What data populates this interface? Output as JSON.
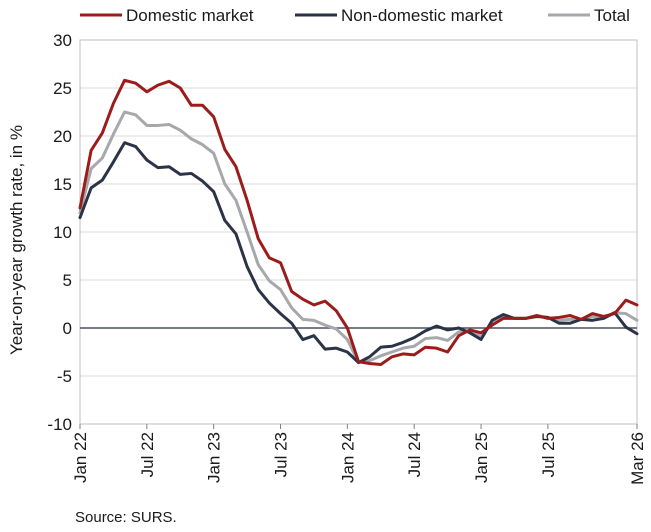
{
  "chart_data": {
    "type": "line",
    "title": "",
    "ylabel": "Year-on-year growth rate, in %",
    "xlabel": "",
    "ylim": [
      -10,
      30
    ],
    "yticks": [
      -10,
      -5,
      0,
      5,
      10,
      15,
      20,
      25,
      30
    ],
    "grid": true,
    "legend_position": "top",
    "x": [
      "Jan 22",
      "Feb 22",
      "Mar 22",
      "Apr 22",
      "May 22",
      "Jun 22",
      "Jul 22",
      "Aug 22",
      "Sep 22",
      "Oct 22",
      "Nov 22",
      "Dec 22",
      "Jan 23",
      "Feb 23",
      "Mar 23",
      "Apr 23",
      "May 23",
      "Jun 23",
      "Jul 23",
      "Aug 23",
      "Sep 23",
      "Oct 23",
      "Nov 23",
      "Dec 23",
      "Jan 24",
      "Feb 24",
      "Mar 24",
      "Apr 24",
      "May 24",
      "Jun 24",
      "Jul 24",
      "Aug 24",
      "Sep 24",
      "Oct 24",
      "Nov 24",
      "Dec 24",
      "Jan 25",
      "Feb 25",
      "Mar 25",
      "Apr 25",
      "May 25",
      "Jun 25",
      "Jul 25",
      "Aug 25",
      "Sep 25",
      "Oct 25",
      "Nov 25",
      "Dec 25",
      "Jan 26",
      "Feb 26",
      "Mar 26"
    ],
    "x_tick_labels": [
      {
        "index": 0,
        "label": "Jan 22"
      },
      {
        "index": 6,
        "label": "Jul 22"
      },
      {
        "index": 12,
        "label": "Jan 23"
      },
      {
        "index": 18,
        "label": "Jul 23"
      },
      {
        "index": 24,
        "label": "Jan 24"
      },
      {
        "index": 30,
        "label": "Jul 24"
      },
      {
        "index": 36,
        "label": "Jan 25"
      },
      {
        "index": 42,
        "label": "Jul 25"
      },
      {
        "index": 50,
        "label": "Mar 26"
      }
    ],
    "series": [
      {
        "name": "Domestic market",
        "color": "#9c1c1c",
        "values": [
          12.5,
          18.5,
          20.3,
          23.4,
          25.8,
          25.5,
          24.6,
          25.3,
          25.7,
          25.0,
          23.2,
          23.2,
          22.0,
          18.6,
          16.8,
          13.3,
          9.3,
          7.3,
          6.8,
          3.8,
          3.0,
          2.4,
          2.8,
          1.8,
          0.0,
          -3.5,
          -3.7,
          -3.8,
          -3.0,
          -2.7,
          -2.8,
          -2.0,
          -2.1,
          -2.5,
          -0.8,
          -0.2,
          -0.5,
          0.3,
          1.0,
          1.0,
          1.0,
          1.3,
          1.0,
          1.1,
          1.3,
          0.9,
          1.5,
          1.2,
          1.5,
          2.9,
          2.4
        ]
      },
      {
        "name": "Non-domestic market",
        "color": "#2b3347",
        "values": [
          11.5,
          14.6,
          15.4,
          17.3,
          19.3,
          18.9,
          17.5,
          16.7,
          16.8,
          16.0,
          16.1,
          15.3,
          14.2,
          11.2,
          9.8,
          6.4,
          4.0,
          2.6,
          1.5,
          0.5,
          -1.2,
          -0.8,
          -2.2,
          -2.1,
          -2.5,
          -3.6,
          -3.0,
          -2.0,
          -1.9,
          -1.5,
          -1.0,
          -0.3,
          0.2,
          -0.2,
          0.0,
          -0.5,
          -1.2,
          0.8,
          1.4,
          1.0,
          1.0,
          1.2,
          1.1,
          0.5,
          0.5,
          0.9,
          0.8,
          1.0,
          1.6,
          0.1,
          -0.6
        ]
      },
      {
        "name": "Total",
        "color": "#a6a8ac",
        "values": [
          12.0,
          16.6,
          17.7,
          20.2,
          22.5,
          22.2,
          21.1,
          21.1,
          21.2,
          20.6,
          19.7,
          19.1,
          18.2,
          15.0,
          13.3,
          10.0,
          6.6,
          4.9,
          4.0,
          2.1,
          0.9,
          0.8,
          0.3,
          -0.1,
          -1.2,
          -3.6,
          -3.4,
          -2.9,
          -2.5,
          -2.1,
          -1.9,
          -1.1,
          -1.0,
          -1.3,
          -0.4,
          -0.3,
          -0.9,
          0.5,
          1.2,
          1.0,
          1.0,
          1.3,
          1.1,
          0.8,
          0.9,
          0.9,
          1.2,
          1.1,
          1.6,
          1.5,
          0.8
        ]
      }
    ]
  },
  "source": "Source: SURS."
}
